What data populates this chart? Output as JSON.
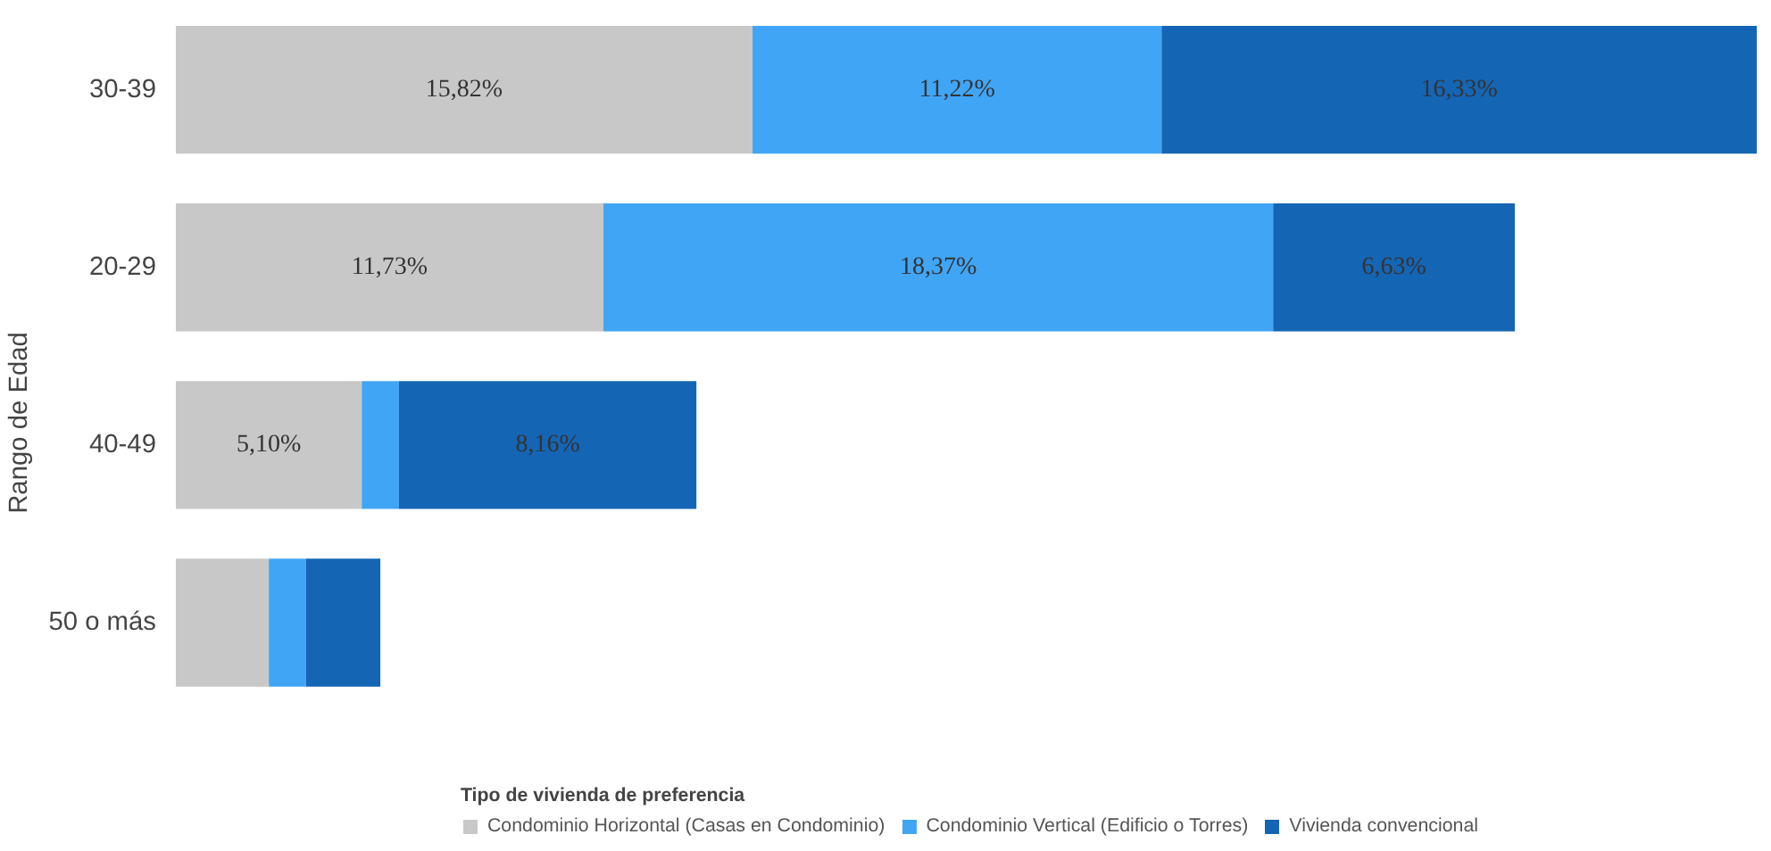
{
  "chart_data": {
    "type": "bar",
    "orientation": "horizontal",
    "stacked": true,
    "ylabel": "Rango de Edad",
    "legend_title": "Tipo de vivienda de preferencia",
    "legend": "bottom",
    "tick_labels": "y",
    "grid": false,
    "categories": [
      "30-39",
      "20-29",
      "40-49",
      "50 o más"
    ],
    "series": [
      {
        "name": "Condominio Horizontal (Casas en Condominio)",
        "color": "#c8c8c8",
        "values": [
          15.82,
          11.73,
          5.1,
          2.55
        ],
        "value_labels": [
          "15,82%",
          "11,73%",
          "5,10%",
          null
        ]
      },
      {
        "name": "Condominio Vertical (Edificio o Torres)",
        "color": "#41a5f5",
        "values": [
          11.22,
          18.37,
          1.02,
          1.02
        ],
        "value_labels": [
          "11,22%",
          "18,37%",
          null,
          null
        ]
      },
      {
        "name": "Vivienda convencional",
        "color": "#1565b5",
        "values": [
          16.33,
          6.63,
          8.16,
          2.04
        ],
        "value_labels": [
          "16,33%",
          "6,63%",
          "8,16%",
          null
        ]
      }
    ]
  }
}
